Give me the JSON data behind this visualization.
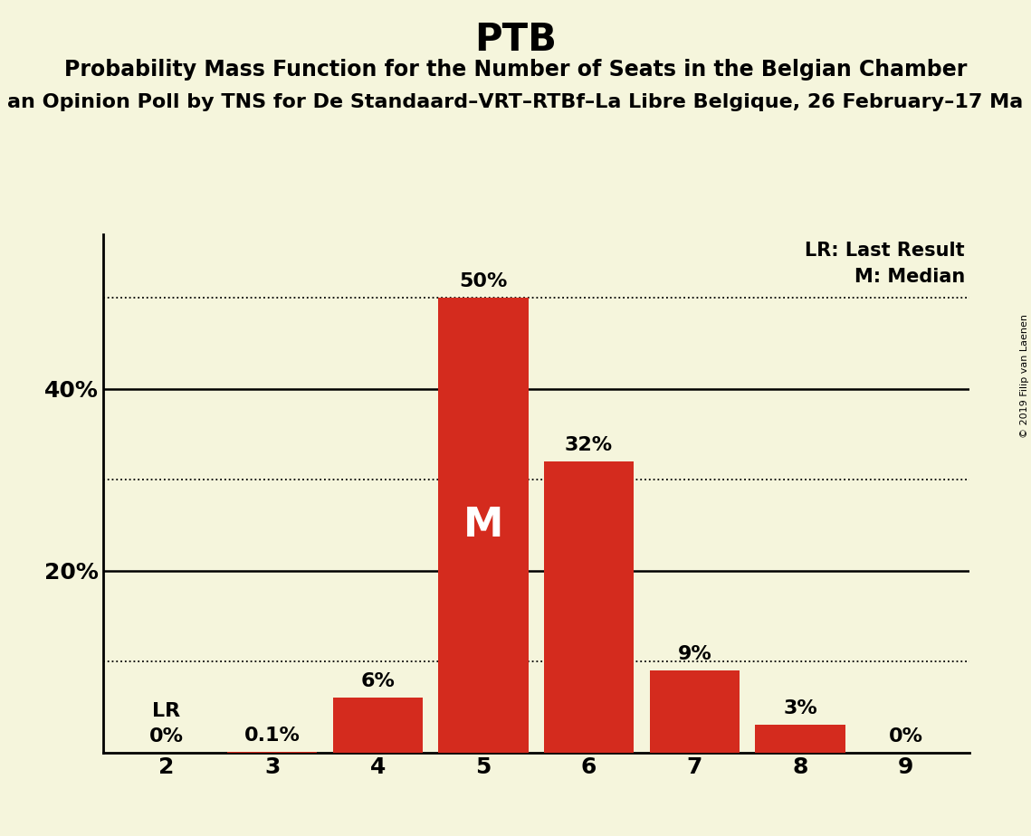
{
  "title": "PTB",
  "subtitle1": "Probability Mass Function for the Number of Seats in the Belgian Chamber",
  "subtitle2": "an Opinion Poll by TNS for De Standaard–VRT–RTBf–La Libre Belgique, 26 February–17 Ma",
  "copyright": "© 2019 Filip van Laenen",
  "categories": [
    2,
    3,
    4,
    5,
    6,
    7,
    8,
    9
  ],
  "values": [
    0.0,
    0.1,
    6.0,
    50.0,
    32.0,
    9.0,
    3.0,
    0.0
  ],
  "labels": [
    "0%",
    "0.1%",
    "6%",
    "50%",
    "32%",
    "9%",
    "3%",
    "0%"
  ],
  "bar_color": "#d42b1e",
  "background_color": "#f5f5dc",
  "median_bar": 5,
  "median_label": "M",
  "lr_bar": 2,
  "lr_label": "LR",
  "legend_lr": "LR: Last Result",
  "legend_m": "M: Median",
  "ytick_positions": [
    20,
    40
  ],
  "ytick_labels": [
    "20%",
    "40%"
  ],
  "dotted_lines": [
    10,
    30,
    50
  ],
  "solid_lines": [
    20,
    40
  ],
  "ylim": [
    0,
    57
  ],
  "title_fontsize": 30,
  "subtitle1_fontsize": 17,
  "subtitle2_fontsize": 16,
  "label_fontsize": 16,
  "tick_fontsize": 18,
  "legend_fontsize": 15,
  "copyright_fontsize": 8
}
